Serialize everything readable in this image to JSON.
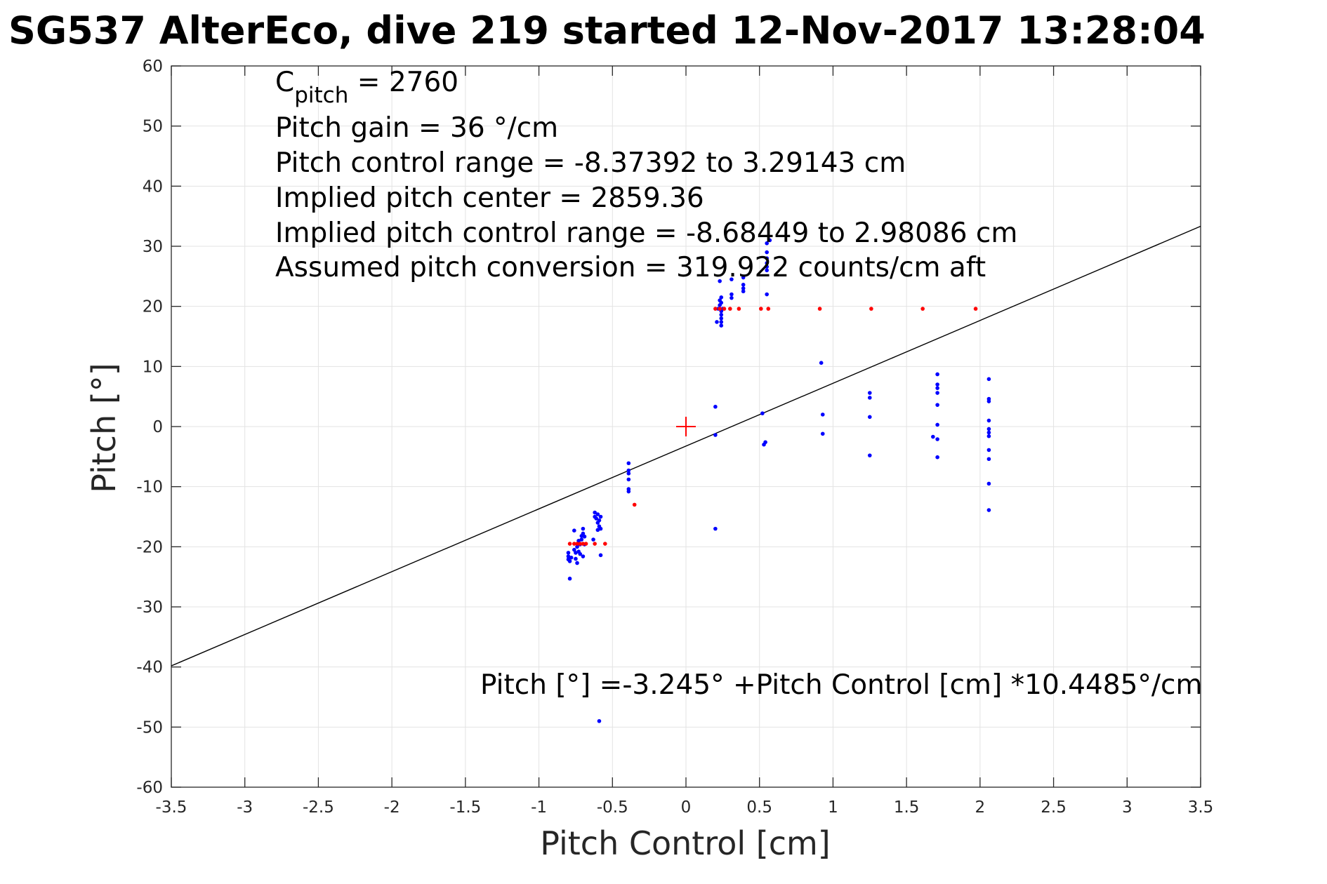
{
  "chart_data": {
    "type": "scatter",
    "title": "SG537 AlterEco, dive 219 started 12-Nov-2017 13:28:04",
    "xlabel": "Pitch Control [cm]",
    "ylabel": "Pitch [°]",
    "xlim": [
      -3.5,
      3.5
    ],
    "ylim": [
      -60,
      60
    ],
    "xticks": [
      -3.5,
      -3,
      -2.5,
      -2,
      -1.5,
      -1,
      -0.5,
      0,
      0.5,
      1,
      1.5,
      2,
      2.5,
      3,
      3.5
    ],
    "xtick_labels": [
      "-3.5",
      "-3",
      "-2.5",
      "-2",
      "-1.5",
      "-1",
      "-0.5",
      "0",
      "0.5",
      "1",
      "1.5",
      "2",
      "2.5",
      "3",
      "3.5"
    ],
    "yticks": [
      -60,
      -50,
      -40,
      -30,
      -20,
      -10,
      0,
      10,
      20,
      30,
      40,
      50,
      60
    ],
    "ytick_labels": [
      "-60",
      "-50",
      "-40",
      "-30",
      "-20",
      "-10",
      "0",
      "10",
      "20",
      "30",
      "40",
      "50",
      "60"
    ],
    "grid": true,
    "annotations": {
      "c_pitch_main": "C",
      "c_pitch_sub": "pitch",
      "c_pitch_rest": " = 2760",
      "lines": [
        "Pitch gain = 36 °/cm",
        "Pitch control range = -8.37392 to 3.29143 cm",
        "Implied pitch center = 2859.36",
        "Implied pitch control range = -8.68449 to 2.98086 cm",
        "Assumed pitch conversion = 319.922 counts/cm aft"
      ],
      "fit_text": "Pitch [°] =-3.245° +Pitch Control [cm] *10.4485°/cm"
    },
    "fit_line": {
      "intercept": -3.245,
      "slope": 10.4485,
      "color": "#000000"
    },
    "center_marker": {
      "x": 0,
      "y": 0,
      "color": "#ff0000",
      "marker": "plus"
    },
    "series": [
      {
        "color": "#0000ff",
        "points": [
          [
            -0.8,
            -21.0
          ],
          [
            -0.8,
            -21.6
          ],
          [
            -0.8,
            -22.1
          ],
          [
            -0.79,
            -22.4
          ],
          [
            -0.78,
            -21.8
          ],
          [
            -0.79,
            -25.3
          ],
          [
            -0.76,
            -17.3
          ],
          [
            -0.76,
            -20.5
          ],
          [
            -0.75,
            -21.0
          ],
          [
            -0.75,
            -22.0
          ],
          [
            -0.74,
            -20.0
          ],
          [
            -0.74,
            -22.7
          ],
          [
            -0.73,
            -19.0
          ],
          [
            -0.73,
            -20.8
          ],
          [
            -0.72,
            -19.6
          ],
          [
            -0.72,
            -21.2
          ],
          [
            -0.71,
            -18.2
          ],
          [
            -0.71,
            -18.8
          ],
          [
            -0.7,
            -17.8
          ],
          [
            -0.7,
            -17.0
          ],
          [
            -0.7,
            -21.6
          ],
          [
            -0.69,
            -18.3
          ],
          [
            -0.69,
            -19.6
          ],
          [
            -0.63,
            -18.8
          ],
          [
            -0.62,
            -14.3
          ],
          [
            -0.62,
            -15.0
          ],
          [
            -0.61,
            -15.3
          ],
          [
            -0.6,
            -14.6
          ],
          [
            -0.6,
            -16.0
          ],
          [
            -0.6,
            -17.2
          ],
          [
            -0.59,
            -15.6
          ],
          [
            -0.59,
            -16.6
          ],
          [
            -0.58,
            -15.0
          ],
          [
            -0.58,
            -17.0
          ],
          [
            -0.58,
            -21.4
          ],
          [
            -0.59,
            -49.0
          ],
          [
            -0.39,
            -6.1
          ],
          [
            -0.39,
            -7.3
          ],
          [
            -0.39,
            -7.8
          ],
          [
            -0.39,
            -8.8
          ],
          [
            -0.39,
            -10.4
          ],
          [
            -0.39,
            -10.8
          ],
          [
            0.2,
            3.3
          ],
          [
            0.2,
            -1.4
          ],
          [
            0.2,
            -17.0
          ],
          [
            0.21,
            17.4
          ],
          [
            0.22,
            19.6
          ],
          [
            0.23,
            21.0
          ],
          [
            0.23,
            24.2
          ],
          [
            0.23,
            20.2
          ],
          [
            0.24,
            16.8
          ],
          [
            0.24,
            17.4
          ],
          [
            0.24,
            18.0
          ],
          [
            0.24,
            18.6
          ],
          [
            0.24,
            19.2
          ],
          [
            0.24,
            20.6
          ],
          [
            0.24,
            21.5
          ],
          [
            0.25,
            19.6
          ],
          [
            0.31,
            21.4
          ],
          [
            0.31,
            22.0
          ],
          [
            0.31,
            24.5
          ],
          [
            0.39,
            22.5
          ],
          [
            0.39,
            23.0
          ],
          [
            0.39,
            23.6
          ],
          [
            0.39,
            24.8
          ],
          [
            0.52,
            2.2
          ],
          [
            0.53,
            -3.0
          ],
          [
            0.54,
            -2.6
          ],
          [
            0.55,
            22.0
          ],
          [
            0.55,
            26.0
          ],
          [
            0.55,
            26.6
          ],
          [
            0.55,
            27.2
          ],
          [
            0.55,
            28.0
          ],
          [
            0.55,
            29.0
          ],
          [
            0.55,
            30.5
          ],
          [
            0.57,
            31.0
          ],
          [
            0.92,
            10.6
          ],
          [
            0.93,
            2.0
          ],
          [
            0.93,
            -1.2
          ],
          [
            1.25,
            5.6
          ],
          [
            1.25,
            4.8
          ],
          [
            1.25,
            1.6
          ],
          [
            1.25,
            -4.8
          ],
          [
            1.68,
            -1.7
          ],
          [
            1.71,
            8.7
          ],
          [
            1.71,
            7.0
          ],
          [
            1.71,
            6.4
          ],
          [
            1.71,
            5.6
          ],
          [
            1.71,
            3.6
          ],
          [
            1.71,
            0.3
          ],
          [
            1.71,
            -2.1
          ],
          [
            1.71,
            -5.1
          ],
          [
            2.06,
            7.9
          ],
          [
            2.06,
            4.6
          ],
          [
            2.06,
            4.2
          ],
          [
            2.06,
            1.0
          ],
          [
            2.06,
            -0.4
          ],
          [
            2.06,
            -1.0
          ],
          [
            2.06,
            -1.6
          ],
          [
            2.06,
            -3.9
          ],
          [
            2.06,
            -5.4
          ],
          [
            2.06,
            -9.5
          ],
          [
            2.06,
            -13.9
          ]
        ]
      },
      {
        "color": "#ff0000",
        "points": [
          [
            -0.79,
            -19.5
          ],
          [
            -0.76,
            -19.5
          ],
          [
            -0.74,
            -19.5
          ],
          [
            -0.72,
            -19.5
          ],
          [
            -0.7,
            -19.5
          ],
          [
            -0.68,
            -19.5
          ],
          [
            -0.62,
            -19.5
          ],
          [
            -0.55,
            -19.5
          ],
          [
            -0.35,
            -13.0
          ],
          [
            0.2,
            19.6
          ],
          [
            0.23,
            19.6
          ],
          [
            0.26,
            19.6
          ],
          [
            0.3,
            19.6
          ],
          [
            0.36,
            19.6
          ],
          [
            0.51,
            19.6
          ],
          [
            0.56,
            19.6
          ],
          [
            0.91,
            19.6
          ],
          [
            1.26,
            19.6
          ],
          [
            1.61,
            19.6
          ],
          [
            1.97,
            19.6
          ]
        ]
      }
    ]
  }
}
